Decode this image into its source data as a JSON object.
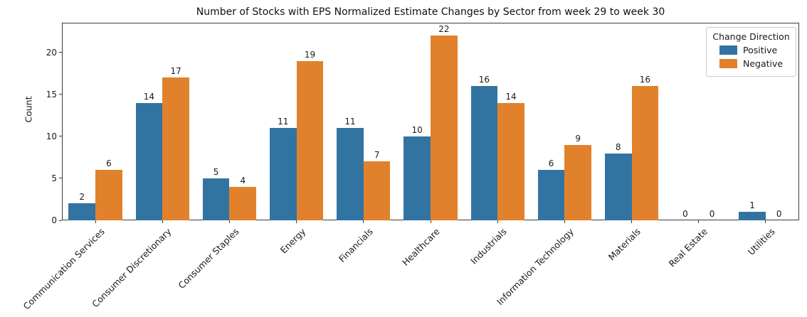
{
  "chart_data": {
    "type": "bar",
    "title": "Number of Stocks with EPS Normalized Estimate Changes by Sector from week 29 to week 30",
    "xlabel": "",
    "ylabel": "Count",
    "categories": [
      "Communication Services",
      "Consumer Discretionary",
      "Consumer Staples",
      "Energy",
      "Financials",
      "Healthcare",
      "Industrials",
      "Information Technology",
      "Materials",
      "Real Estate",
      "Utilities"
    ],
    "series": [
      {
        "name": "Positive",
        "color": "#3274a1",
        "values": [
          2,
          14,
          5,
          11,
          11,
          10,
          16,
          6,
          8,
          0,
          1
        ]
      },
      {
        "name": "Negative",
        "color": "#e1812c",
        "values": [
          6,
          17,
          4,
          19,
          7,
          22,
          14,
          9,
          16,
          0,
          0
        ]
      }
    ],
    "yticks": [
      0,
      5,
      10,
      15,
      20
    ],
    "ylim": [
      0,
      23.55
    ],
    "grid": false,
    "bar_labels": true,
    "legend": {
      "title": "Change Direction",
      "position": "upper right"
    }
  }
}
